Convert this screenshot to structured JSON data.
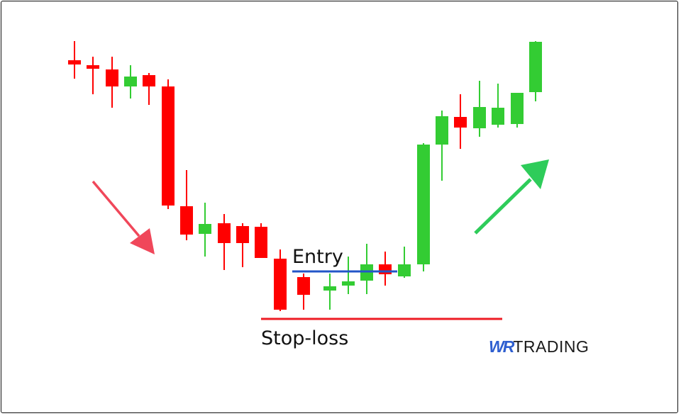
{
  "labels": {
    "entry": "Entry",
    "stop_loss": "Stop-loss"
  },
  "logo": {
    "part1": "WR",
    "part2": "TRADING"
  },
  "colors": {
    "bullish": "#33cc33",
    "bearish": "#ff0000",
    "entry_line": "#2356c8",
    "stop_line": "#ee1c24",
    "down_arrow": "#f0475a",
    "up_arrow": "#2ecc5a"
  },
  "chart_data": {
    "type": "candlestick",
    "candles": [
      {
        "o": 515,
        "c": 509,
        "h": 542,
        "l": 489
      },
      {
        "o": 508,
        "c": 503,
        "h": 520,
        "l": 467
      },
      {
        "o": 502,
        "c": 478,
        "h": 520,
        "l": 448
      },
      {
        "o": 478,
        "c": 492,
        "h": 508,
        "l": 461
      },
      {
        "o": 494,
        "c": 478,
        "h": 497,
        "l": 452
      },
      {
        "o": 478,
        "c": 310,
        "h": 488,
        "l": 305
      },
      {
        "o": 309,
        "c": 269,
        "h": 360,
        "l": 261
      },
      {
        "o": 270,
        "c": 284,
        "h": 314,
        "l": 238
      },
      {
        "o": 285,
        "c": 257,
        "h": 298,
        "l": 219
      },
      {
        "o": 281,
        "c": 257,
        "h": 285,
        "l": 223
      },
      {
        "o": 280,
        "c": 236,
        "h": 285,
        "l": 236
      },
      {
        "o": 235,
        "c": 163,
        "h": 248,
        "l": 161
      },
      {
        "o": 209,
        "c": 184,
        "h": 214,
        "l": 163
      },
      {
        "o": 190,
        "c": 196,
        "h": 214,
        "l": 163
      },
      {
        "o": 197,
        "c": 203,
        "h": 238,
        "l": 185
      },
      {
        "o": 204,
        "c": 227,
        "h": 256,
        "l": 185
      },
      {
        "o": 227,
        "c": 213,
        "h": 245,
        "l": 197
      },
      {
        "o": 210,
        "c": 227,
        "h": 252,
        "l": 208
      },
      {
        "o": 227,
        "c": 396,
        "h": 398,
        "l": 217
      },
      {
        "o": 396,
        "c": 436,
        "h": 444,
        "l": 345
      },
      {
        "o": 435,
        "c": 420,
        "h": 467,
        "l": 390
      },
      {
        "o": 419,
        "c": 449,
        "h": 486,
        "l": 407
      },
      {
        "o": 424,
        "c": 448,
        "h": 482,
        "l": 420
      },
      {
        "o": 425,
        "c": 469,
        "h": 469,
        "l": 420
      },
      {
        "o": 470,
        "c": 541,
        "h": 542,
        "l": 457
      }
    ],
    "entry_level": 217,
    "stop_loss_level": 150
  }
}
